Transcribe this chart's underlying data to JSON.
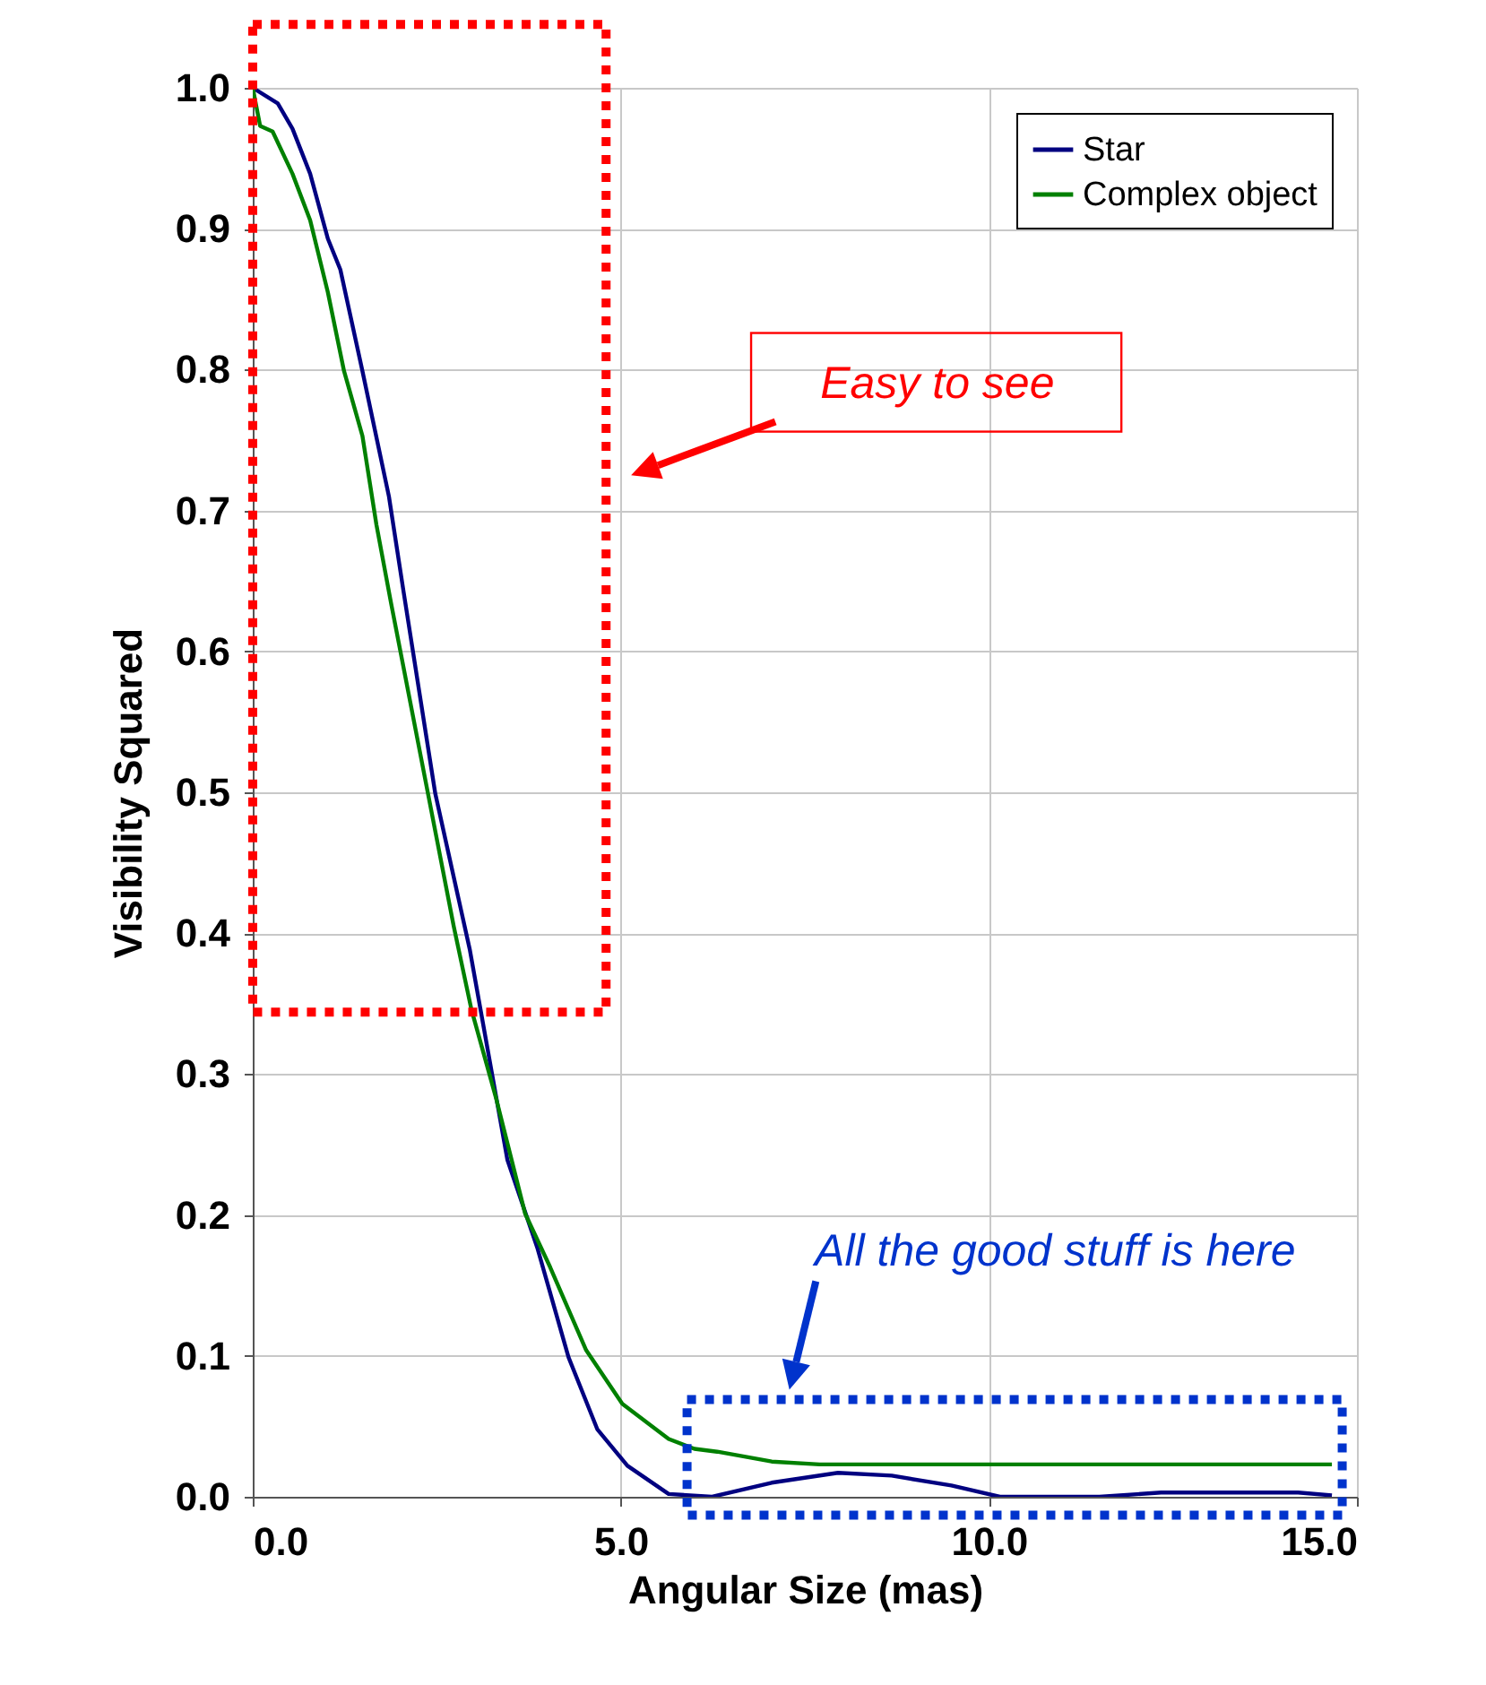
{
  "chart_data": {
    "type": "line",
    "xlabel": "Angular Size (mas)",
    "ylabel": "Visibility Squared",
    "xlim": [
      0,
      15
    ],
    "xticks": [
      {
        "value": 0,
        "label": "0.0"
      },
      {
        "value": 5,
        "label": "5.0"
      },
      {
        "value": 10,
        "label": "10.0"
      },
      {
        "value": 15,
        "label": "15.0"
      }
    ],
    "ylim": [
      0,
      1
    ],
    "yticks": [
      {
        "value": 0,
        "label": "0.0"
      },
      {
        "value": 0.1,
        "label": "0.1"
      },
      {
        "value": 0.2,
        "label": "0.2"
      },
      {
        "value": 0.3,
        "label": "0.3"
      },
      {
        "value": 0.4,
        "label": "0.4"
      },
      {
        "value": 0.5,
        "label": "0.5"
      },
      {
        "value": 0.6,
        "label": "0.6"
      },
      {
        "value": 0.7,
        "label": "0.7"
      },
      {
        "value": 0.8,
        "label": "0.8"
      },
      {
        "value": 0.9,
        "label": "0.9"
      },
      {
        "value": 1,
        "label": "1.0"
      }
    ],
    "grid": true,
    "legend": "top right",
    "marker": "none",
    "line_style": "solid",
    "series": [
      {
        "name": "Star",
        "color": "#000080",
        "x": [
          0,
          0.34,
          0.54,
          0.78,
          1.02,
          1.19,
          1.49,
          1.85,
          2.05,
          2.48,
          2.95,
          3.46,
          3.87,
          4.29,
          4.68,
          5.09,
          5.65,
          6.24,
          7.05,
          7.95,
          8.68,
          9.49,
          10.15,
          11.5,
          12.34,
          14.2,
          14.66
        ],
        "values": [
          1.0,
          0.989,
          0.971,
          0.939,
          0.893,
          0.871,
          0.799,
          0.71,
          0.642,
          0.499,
          0.388,
          0.239,
          0.176,
          0.099,
          0.048,
          0.022,
          0.002,
          0,
          0.01,
          0.017,
          0.015,
          0.008,
          0,
          0,
          0.003,
          0.003,
          0.001
        ]
      },
      {
        "name": "Complex object",
        "color": "#008000",
        "x": [
          0,
          0.1,
          0.27,
          0.54,
          0.78,
          1.02,
          1.24,
          1.49,
          1.68,
          1.88,
          2.24,
          2.73,
          2.97,
          3.31,
          3.7,
          4.04,
          4.53,
          5.02,
          5.65,
          6.0,
          6.31,
          7.05,
          7.7,
          14.66
        ],
        "values": [
          1.0,
          0.973,
          0.969,
          0.939,
          0.906,
          0.855,
          0.799,
          0.753,
          0.69,
          0.634,
          0.537,
          0.405,
          0.346,
          0.282,
          0.201,
          0.163,
          0.104,
          0.066,
          0.041,
          0.034,
          0.032,
          0.025,
          0.023,
          0.023
        ]
      }
    ],
    "annotations": [
      "Easy to see",
      "All the good stuff is here"
    ]
  }
}
